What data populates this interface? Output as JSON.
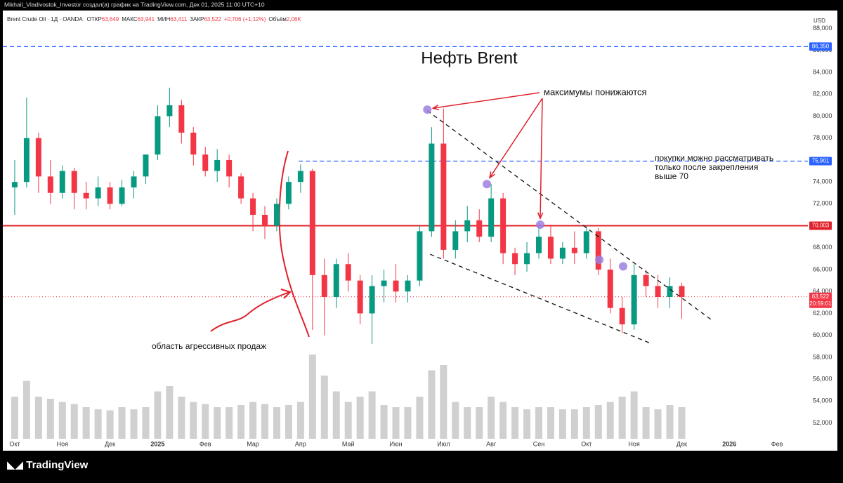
{
  "header": {
    "caption": "Mikhail_Vladivostok_Investor создал(а) график на TradingView.com, Дек 01, 2025 11:00 UTC+10",
    "symbol": "Brent Crude Oil · 1Д · OANDA",
    "ohlc": [
      {
        "label": "ОТКР",
        "value": "63,649"
      },
      {
        "label": "МАКС",
        "value": "63,941"
      },
      {
        "label": "МИН",
        "value": "63,411"
      },
      {
        "label": "ЗАКР",
        "value": "63,522"
      }
    ],
    "change": "+0,706 (+1,12%)",
    "volume_label": "Объём",
    "volume_value": "2,06K"
  },
  "footer": {
    "brand": "TradingView"
  },
  "chart_data": {
    "type": "candlestick",
    "title": "Нефть Brent",
    "currency": "USD",
    "up_color": "#089981",
    "down_color": "#f23645",
    "volume_color": "#c4c4c4",
    "x": [
      0,
      0.25,
      0.5,
      0.75,
      1,
      1.25,
      1.5,
      1.75,
      2,
      2.25,
      2.5,
      2.75,
      3,
      3.25,
      3.5,
      3.75,
      4,
      4.25,
      4.5,
      4.75,
      5,
      5.25,
      5.5,
      5.75,
      6,
      6.25,
      6.5,
      6.75,
      7,
      7.25,
      7.5,
      7.75,
      8,
      8.25,
      8.5,
      8.75,
      9,
      9.25,
      9.5,
      9.75,
      10,
      10.25,
      10.5,
      10.75,
      11,
      11.25,
      11.5,
      11.75,
      12,
      12.25,
      12.5,
      12.75,
      13,
      13.25,
      13.5,
      13.75,
      14
    ],
    "open": [
      73.5,
      74,
      78,
      74.5,
      73,
      75,
      73,
      72.5,
      73.5,
      72,
      73.5,
      74.5,
      76.5,
      80,
      81,
      78.5,
      76.5,
      75,
      76,
      74.5,
      72.5,
      71,
      70,
      72,
      74,
      75,
      65.5,
      63.5,
      66.5,
      65,
      62,
      64.5,
      65,
      64,
      65,
      69.5,
      77.5,
      67.8,
      69.5,
      70.5,
      69,
      72.5,
      67.5,
      66.5,
      67.5,
      69,
      67,
      68,
      67.5,
      69.5,
      66,
      62.5,
      61,
      65.5,
      64.5,
      63.5,
      64.5
    ],
    "high": [
      76,
      81.7,
      78.5,
      76,
      75.5,
      75.3,
      74,
      74.5,
      74,
      74.2,
      75,
      76.5,
      81,
      82.6,
      81.5,
      79,
      77.2,
      77,
      76.5,
      74.8,
      73,
      71.8,
      72.5,
      74.5,
      75.6,
      75.2,
      67,
      67,
      67.5,
      65.5,
      65.5,
      66,
      66.5,
      65.5,
      70,
      79,
      80.7,
      70.5,
      71.8,
      71.5,
      73.8,
      73,
      68,
      68.5,
      70,
      70.1,
      68.5,
      69.5,
      70,
      69.8,
      67,
      63.5,
      66.5,
      66,
      65.5,
      65.3,
      64.8
    ],
    "low": [
      71,
      73.5,
      73,
      72,
      72.5,
      71.5,
      71.5,
      71.8,
      71.5,
      71.8,
      72.5,
      73.8,
      76,
      79,
      77.5,
      75.5,
      74.5,
      74,
      73.5,
      72,
      69.5,
      68.8,
      69.5,
      71.5,
      73,
      60.5,
      60,
      62.5,
      64,
      61,
      59.2,
      63,
      63,
      63,
      64.5,
      69,
      67,
      67,
      68.5,
      68.5,
      68.5,
      66.5,
      65.5,
      65.8,
      67,
      66.5,
      66.5,
      66.5,
      67,
      65.5,
      62,
      60.2,
      60.5,
      63.5,
      62.5,
      62.5,
      61.5
    ],
    "close": [
      74,
      78,
      74.5,
      73,
      75,
      73,
      72.5,
      73.5,
      72,
      73.5,
      74.5,
      76.5,
      80,
      81,
      78.5,
      76.5,
      75,
      76,
      74.5,
      72.5,
      71,
      70,
      72,
      74,
      75,
      65.5,
      63.5,
      66.5,
      65,
      62,
      64.5,
      65,
      64,
      65,
      69.5,
      77.5,
      67.8,
      69.5,
      70.5,
      69,
      72.5,
      67.5,
      66.5,
      67.5,
      69,
      67,
      68,
      67.5,
      69.5,
      66,
      62.5,
      61,
      65.5,
      64.5,
      63.5,
      64.5,
      63.5
    ],
    "volume": [
      40,
      55,
      40,
      38,
      35,
      33,
      30,
      28,
      27,
      30,
      28,
      30,
      45,
      50,
      40,
      35,
      33,
      30,
      30,
      32,
      35,
      33,
      30,
      32,
      35,
      80,
      60,
      45,
      35,
      40,
      45,
      32,
      30,
      30,
      40,
      65,
      70,
      35,
      30,
      30,
      40,
      35,
      30,
      28,
      30,
      30,
      28,
      28,
      30,
      32,
      35,
      40,
      45,
      30,
      28,
      32,
      30
    ],
    "volume_lim": [
      0,
      100
    ],
    "xlim": [
      -0.25,
      16.5
    ],
    "xticks": [
      {
        "value": 0,
        "label": "Окт"
      },
      {
        "value": 1,
        "label": "Ноя"
      },
      {
        "value": 2,
        "label": "Дек"
      },
      {
        "value": 3,
        "label": "2025"
      },
      {
        "value": 4,
        "label": "Фев"
      },
      {
        "value": 5,
        "label": "Мар"
      },
      {
        "value": 6,
        "label": "Апр"
      },
      {
        "value": 7,
        "label": "Май"
      },
      {
        "value": 8,
        "label": "Июн"
      },
      {
        "value": 9,
        "label": "Июл"
      },
      {
        "value": 10,
        "label": "Авг"
      },
      {
        "value": 11,
        "label": "Сен"
      },
      {
        "value": 12,
        "label": "Окт"
      },
      {
        "value": 13,
        "label": "Ноя"
      },
      {
        "value": 14,
        "label": "Дек"
      },
      {
        "value": 15,
        "label": "2026"
      },
      {
        "value": 16,
        "label": "Фев"
      }
    ],
    "ylim": [
      49.6,
      89.45
    ],
    "yticks": [
      {
        "value": 52,
        "label": "52,000"
      },
      {
        "value": 54,
        "label": "54,000"
      },
      {
        "value": 56,
        "label": "56,000"
      },
      {
        "value": 58,
        "label": "58,000"
      },
      {
        "value": 60,
        "label": "60,000"
      },
      {
        "value": 62,
        "label": "62,000"
      },
      {
        "value": 64,
        "label": "64,000"
      },
      {
        "value": 66,
        "label": "66,000"
      },
      {
        "value": 68,
        "label": "68,000"
      },
      {
        "value": 70,
        "label": "70,000"
      },
      {
        "value": 72,
        "label": "72,000"
      },
      {
        "value": 74,
        "label": "74,000"
      },
      {
        "value": 76,
        "label": "76,000"
      },
      {
        "value": 78,
        "label": "78,000"
      },
      {
        "value": 80,
        "label": "80,000"
      },
      {
        "value": 82,
        "label": "82,000"
      },
      {
        "value": 84,
        "label": "84,000"
      },
      {
        "value": 86,
        "label": "86,000"
      },
      {
        "value": 88,
        "label": "88,000"
      }
    ],
    "levels": [
      {
        "value": 86.35,
        "label": "86,350",
        "color": "#2962ff",
        "style": "dashed",
        "start": -0.25
      },
      {
        "value": 75.901,
        "label": "75,901",
        "color": "#2962ff",
        "style": "dashed",
        "start": 5.96
      },
      {
        "value": 70.003,
        "label": "70,003",
        "color": "#e0202a",
        "style": "solid",
        "start": -0.25
      },
      {
        "value": 63.522,
        "label": "63,522",
        "countdown": "20:59:01",
        "color": "#f23645",
        "style": "dotted",
        "start": -0.25
      }
    ],
    "trendlines": [
      {
        "x": [
          8.66,
          14.66
        ],
        "y": [
          80.5,
          61.3
        ]
      },
      {
        "x": [
          8.72,
          13.33
        ],
        "y": [
          67.4,
          59.3
        ]
      }
    ],
    "highs": {
      "color": "#9c7fe0",
      "x": [
        8.66,
        9.91,
        11.03,
        12.27,
        12.77
      ],
      "y": [
        80.6,
        73.8,
        70.1,
        66.9,
        66.3
      ]
    },
    "annotations": {
      "highs_note": "максимумы понижаются",
      "buy_note": [
        "покупки можно рассматривать",
        "только после закрепления",
        "выше 70"
      ],
      "sell_note": "область агрессивных продаж"
    }
  }
}
